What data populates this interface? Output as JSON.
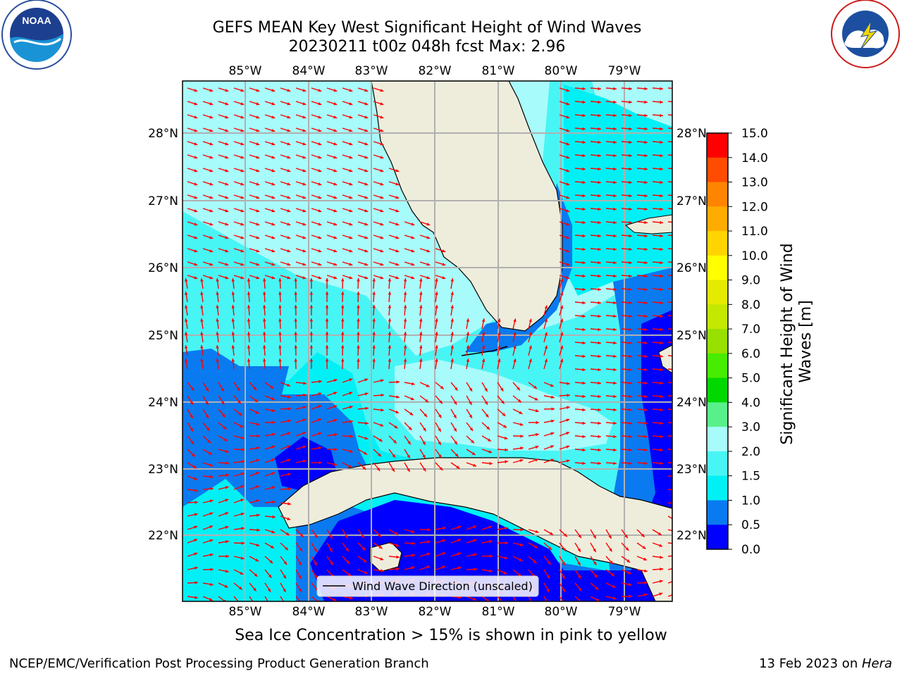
{
  "title": {
    "line1": "GEFS MEAN Key West Significant Height of Wind Waves",
    "line2": "20230211 t00z 048h fcst   Max: 2.96"
  },
  "logos": {
    "noaa_text": "NOAA",
    "noaa_ring": "NATIONAL OCEANIC AND ATMOSPHERIC ADMINISTRATION · U.S. DEPARTMENT OF COMMERCE",
    "nws_ring": "NATIONAL WEATHER SERVICE"
  },
  "map": {
    "lon_labels": [
      "85°W",
      "84°W",
      "83°W",
      "82°W",
      "81°W",
      "80°W",
      "79°W"
    ],
    "lat_labels": [
      "28°N",
      "27°N",
      "26°N",
      "25°N",
      "24°N",
      "23°N",
      "22°N"
    ],
    "legend_label": "Wind Wave Direction (unscaled)",
    "colors": {
      "land": "#eeeddc",
      "arrow": "#ff0000",
      "grid": "#b0b0b0"
    }
  },
  "colorbar": {
    "label": "Significant Height of Wind Waves [m]",
    "levels": [
      "0.0",
      "0.5",
      "1.0",
      "1.5",
      "2.0",
      "3.0",
      "4.0",
      "5.0",
      "6.0",
      "7.0",
      "8.0",
      "9.0",
      "10.0",
      "11.0",
      "12.0",
      "13.0",
      "14.0",
      "15.0"
    ],
    "colors": [
      "#0000ff",
      "#0a7af0",
      "#00f0f5",
      "#48f5f5",
      "#a8fbfb",
      "#58f08a",
      "#00d800",
      "#48ec00",
      "#98e000",
      "#c4e800",
      "#e4ea00",
      "#ffff00",
      "#ffd400",
      "#ffac00",
      "#ff8400",
      "#ff4c00",
      "#ff0000"
    ]
  },
  "note": "Sea Ice Concentration > 15% is shown in pink to yellow",
  "footer": {
    "left": "NCEP/EMC/Verification Post Processing Product Generation Branch",
    "right_date": "13 Feb 2023 on ",
    "right_host": "Hera"
  }
}
